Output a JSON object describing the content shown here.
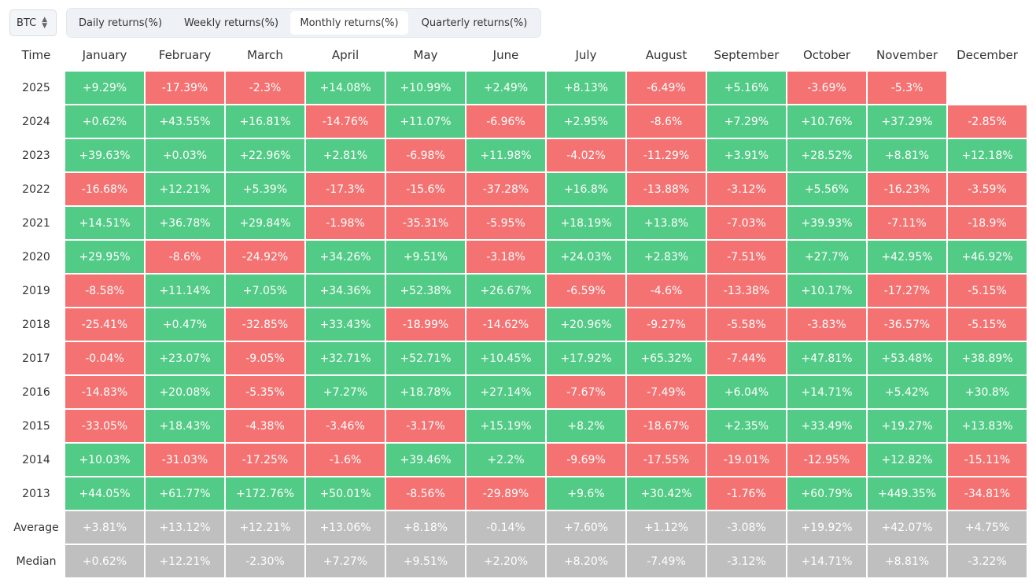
{
  "toolbar": {
    "asset": "BTC",
    "tabs": [
      "Daily returns(%)",
      "Weekly returns(%)",
      "Monthly returns(%)",
      "Quarterly returns(%)"
    ],
    "active_tab": 2
  },
  "table": {
    "header": [
      "Time",
      "January",
      "February",
      "March",
      "April",
      "May",
      "June",
      "July",
      "August",
      "September",
      "October",
      "November",
      "December"
    ],
    "rows": [
      {
        "label": "2025",
        "cells": [
          "+9.29%",
          "-17.39%",
          "-2.3%",
          "+14.08%",
          "+10.99%",
          "+2.49%",
          "+8.13%",
          "-6.49%",
          "+5.16%",
          "-3.69%",
          "-5.3%",
          null
        ]
      },
      {
        "label": "2024",
        "cells": [
          "+0.62%",
          "+43.55%",
          "+16.81%",
          "-14.76%",
          "+11.07%",
          "-6.96%",
          "+2.95%",
          "-8.6%",
          "+7.29%",
          "+10.76%",
          "+37.29%",
          "-2.85%"
        ]
      },
      {
        "label": "2023",
        "cells": [
          "+39.63%",
          "+0.03%",
          "+22.96%",
          "+2.81%",
          "-6.98%",
          "+11.98%",
          "-4.02%",
          "-11.29%",
          "+3.91%",
          "+28.52%",
          "+8.81%",
          "+12.18%"
        ]
      },
      {
        "label": "2022",
        "cells": [
          "-16.68%",
          "+12.21%",
          "+5.39%",
          "-17.3%",
          "-15.6%",
          "-37.28%",
          "+16.8%",
          "-13.88%",
          "-3.12%",
          "+5.56%",
          "-16.23%",
          "-3.59%"
        ]
      },
      {
        "label": "2021",
        "cells": [
          "+14.51%",
          "+36.78%",
          "+29.84%",
          "-1.98%",
          "-35.31%",
          "-5.95%",
          "+18.19%",
          "+13.8%",
          "-7.03%",
          "+39.93%",
          "-7.11%",
          "-18.9%"
        ]
      },
      {
        "label": "2020",
        "cells": [
          "+29.95%",
          "-8.6%",
          "-24.92%",
          "+34.26%",
          "+9.51%",
          "-3.18%",
          "+24.03%",
          "+2.83%",
          "-7.51%",
          "+27.7%",
          "+42.95%",
          "+46.92%"
        ]
      },
      {
        "label": "2019",
        "cells": [
          "-8.58%",
          "+11.14%",
          "+7.05%",
          "+34.36%",
          "+52.38%",
          "+26.67%",
          "-6.59%",
          "-4.6%",
          "-13.38%",
          "+10.17%",
          "-17.27%",
          "-5.15%"
        ]
      },
      {
        "label": "2018",
        "cells": [
          "-25.41%",
          "+0.47%",
          "-32.85%",
          "+33.43%",
          "-18.99%",
          "-14.62%",
          "+20.96%",
          "-9.27%",
          "-5.58%",
          "-3.83%",
          "-36.57%",
          "-5.15%"
        ]
      },
      {
        "label": "2017",
        "cells": [
          "-0.04%",
          "+23.07%",
          "-9.05%",
          "+32.71%",
          "+52.71%",
          "+10.45%",
          "+17.92%",
          "+65.32%",
          "-7.44%",
          "+47.81%",
          "+53.48%",
          "+38.89%"
        ]
      },
      {
        "label": "2016",
        "cells": [
          "-14.83%",
          "+20.08%",
          "-5.35%",
          "+7.27%",
          "+18.78%",
          "+27.14%",
          "-7.67%",
          "-7.49%",
          "+6.04%",
          "+14.71%",
          "+5.42%",
          "+30.8%"
        ]
      },
      {
        "label": "2015",
        "cells": [
          "-33.05%",
          "+18.43%",
          "-4.38%",
          "-3.46%",
          "-3.17%",
          "+15.19%",
          "+8.2%",
          "-18.67%",
          "+2.35%",
          "+33.49%",
          "+19.27%",
          "+13.83%"
        ]
      },
      {
        "label": "2014",
        "cells": [
          "+10.03%",
          "-31.03%",
          "-17.25%",
          "-1.6%",
          "+39.46%",
          "+2.2%",
          "-9.69%",
          "-17.55%",
          "-19.01%",
          "-12.95%",
          "+12.82%",
          "-15.11%"
        ]
      },
      {
        "label": "2013",
        "cells": [
          "+44.05%",
          "+61.77%",
          "+172.76%",
          "+50.01%",
          "-8.56%",
          "-29.89%",
          "+9.6%",
          "+30.42%",
          "-1.76%",
          "+60.79%",
          "+449.35%",
          "-34.81%"
        ]
      }
    ],
    "summary_rows": [
      {
        "label": "Average",
        "cells": [
          "+3.81%",
          "+13.12%",
          "+12.21%",
          "+13.06%",
          "+8.18%",
          "-0.14%",
          "+7.60%",
          "+1.12%",
          "-3.08%",
          "+19.92%",
          "+42.07%",
          "+4.75%"
        ]
      },
      {
        "label": "Median",
        "cells": [
          "+0.62%",
          "+12.21%",
          "-2.30%",
          "+7.27%",
          "+9.51%",
          "+2.20%",
          "+8.20%",
          "-7.49%",
          "-3.12%",
          "+14.71%",
          "+8.81%",
          "-3.22%"
        ]
      }
    ]
  }
}
